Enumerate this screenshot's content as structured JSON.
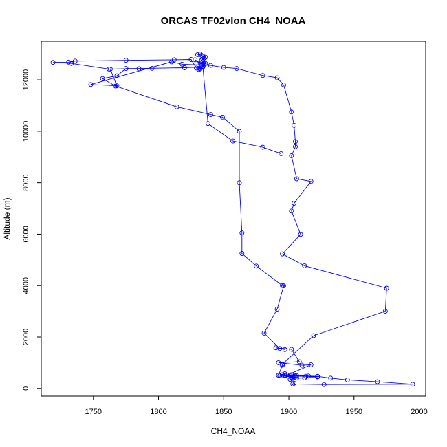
{
  "chart_data": {
    "type": "line",
    "title": "ORCAS TF02vlon CH4_NOAA",
    "xlabel": "CH4_NOAA",
    "ylabel": "Altitude (m)",
    "xlim": [
      1710,
      2005
    ],
    "ylim": [
      -300,
      13500
    ],
    "xticks": [
      1750,
      1800,
      1850,
      1900,
      1950,
      2000
    ],
    "yticks": [
      0,
      2000,
      4000,
      6000,
      8000,
      10000,
      12000
    ],
    "grid": false,
    "colors": {
      "series": "#0000ff",
      "frame": "#000000"
    },
    "series": [
      {
        "x": [
          1833,
          1830,
          1832,
          1834,
          1836,
          1835,
          1834,
          1833,
          1834,
          1832,
          1828,
          1834,
          1833,
          1835,
          1836,
          1835,
          1834,
          1831,
          1832,
          1831,
          1829,
          1825,
          1812,
          1775,
          1736,
          1731,
          1719,
          1733,
          1762,
          1785,
          1775,
          1768,
          1757,
          1767,
          1814,
          1840,
          1849,
          1862,
          1862,
          1864,
          1864,
          1875,
          1895,
          1896,
          1891,
          1881,
          1893,
          1897,
          1890,
          1902,
          1908,
          1892,
          1910,
          1917,
          1897,
          1913,
          1922,
          1912,
          1903,
          1902,
          1904,
          1902,
          1897,
          1905,
          1901,
          1906,
          1915,
          1922,
          1932,
          1945,
          1968,
          1995,
          1927,
          1903,
          1904,
          1901,
          1906,
          1893,
          1895,
          1897,
          1892,
          1895,
          1895,
          1919,
          1974,
          1975,
          1912,
          1895,
          1909,
          1902,
          1904,
          1917,
          1906,
          1902,
          1905,
          1905,
          1904,
          1902,
          1896,
          1891,
          1880,
          1860,
          1850,
          1840,
          1818,
          1810,
          1748,
          1768,
          1763,
          1795,
          1820,
          1834,
          1838,
          1857,
          1880,
          1894
        ],
        "y": [
          12950,
          12980,
          13000,
          12920,
          12880,
          12850,
          12800,
          12760,
          12700,
          12620,
          12780,
          12600,
          12560,
          12620,
          12640,
          12580,
          12520,
          12450,
          12430,
          12400,
          12460,
          12790,
          12780,
          12760,
          12730,
          12690,
          12680,
          12640,
          12420,
          12430,
          12440,
          12160,
          12050,
          11760,
          10950,
          10650,
          10550,
          10000,
          8000,
          6050,
          5250,
          4760,
          4000,
          3990,
          3080,
          2150,
          1550,
          1510,
          1580,
          1520,
          1040,
          1000,
          900,
          920,
          480,
          470,
          450,
          410,
          390,
          400,
          470,
          530,
          510,
          490,
          520,
          500,
          480,
          470,
          400,
          330,
          260,
          160,
          150,
          170,
          200,
          350,
          410,
          500,
          530,
          570,
          510,
          900,
          940,
          2050,
          3000,
          3900,
          4770,
          5230,
          5990,
          6900,
          7200,
          8050,
          8150,
          9050,
          9400,
          9600,
          10230,
          10750,
          11800,
          12080,
          12170,
          12440,
          12480,
          12560,
          12610,
          12700,
          11820,
          11770,
          12420,
          12450,
          12470,
          12500,
          10300,
          9620,
          9380,
          9130
        ]
      }
    ]
  }
}
